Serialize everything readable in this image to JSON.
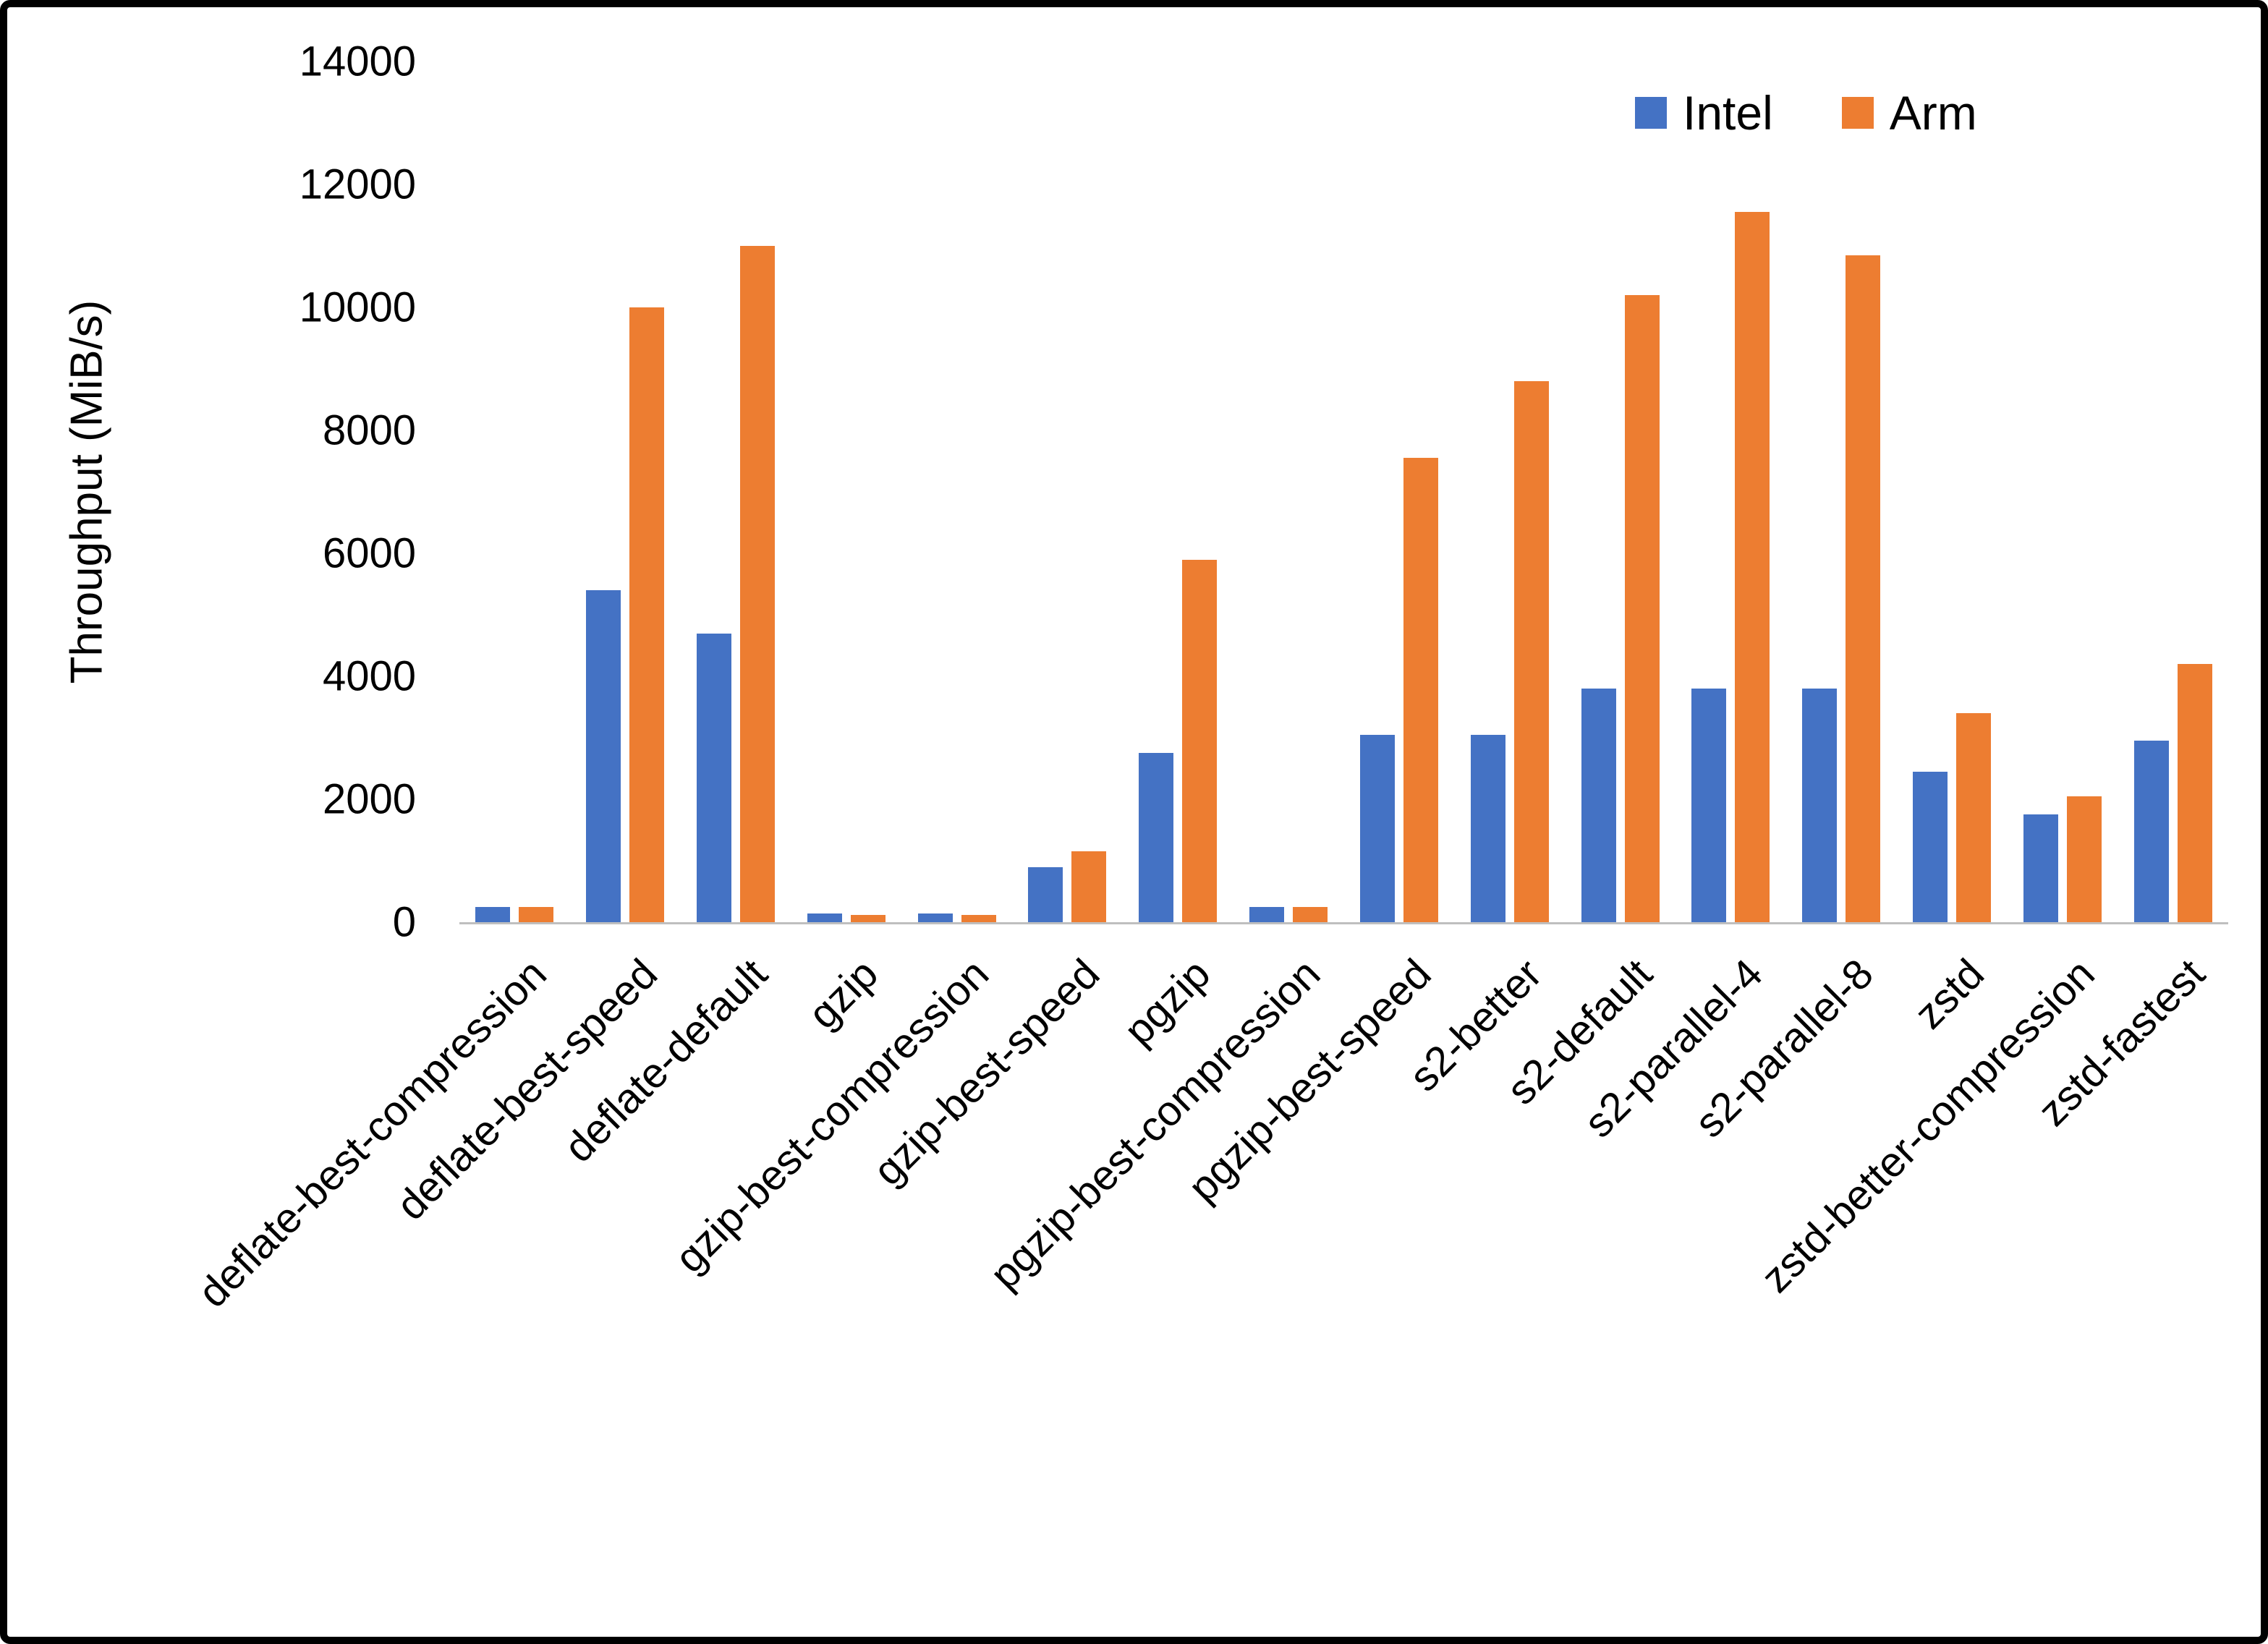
{
  "chart_data": {
    "type": "bar",
    "title": "",
    "xlabel": "",
    "ylabel": "Throughput (MiB/s)",
    "ylim": [
      0,
      14000
    ],
    "yticks": [
      0,
      2000,
      4000,
      6000,
      8000,
      10000,
      12000,
      14000
    ],
    "grid": false,
    "legend_position": "top-right",
    "categories": [
      "deflate-best-compression",
      "deflate-best-speed",
      "deflate-default",
      "gzip",
      "gzip-best-compression",
      "gzip-best-speed",
      "pgzip",
      "pgzip-best-compression",
      "pgzip-best-speed",
      "s2-better",
      "s2-default",
      "s2-parallel-4",
      "s2-parallel-8",
      "zstd",
      "zstd-better-compression",
      "zstd-fastest"
    ],
    "series": [
      {
        "name": "Intel",
        "color": "#4472C4",
        "values": [
          250,
          5400,
          4700,
          140,
          140,
          900,
          2750,
          250,
          3050,
          3050,
          3800,
          3800,
          3800,
          2450,
          1750,
          2950
        ]
      },
      {
        "name": "Arm",
        "color": "#ED7D31",
        "values": [
          250,
          10000,
          11000,
          120,
          120,
          1150,
          5900,
          250,
          7550,
          8800,
          10200,
          11550,
          10850,
          3400,
          2050,
          4200
        ]
      }
    ]
  }
}
